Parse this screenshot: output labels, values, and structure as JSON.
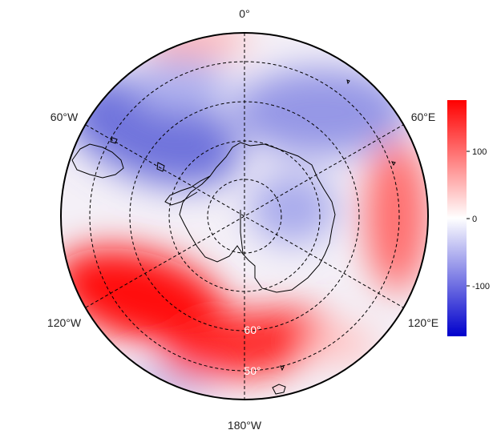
{
  "map": {
    "projection": "south polar stereographic",
    "longitude_labels": {
      "top": "0°",
      "upper_left": "60°W",
      "upper_right": "60°E",
      "lower_left": "120°W",
      "lower_right": "120°E",
      "bottom": "180°W"
    },
    "latitude_labels": [
      "60°",
      "50°"
    ],
    "graticule": {
      "style": "dashed",
      "color": "#000000"
    }
  },
  "colorbar": {
    "ticks": [
      "100",
      "0",
      "-100"
    ],
    "colors": {
      "high": "#ff0000",
      "mid": "#ffffff",
      "low": "#0000cc"
    }
  },
  "field_anomalies": {
    "positive": [
      "Pacific sector 120°W–180°",
      "Indian Ocean 60°E–120°E",
      "Atlantic near 0°"
    ],
    "negative": [
      "South Atlantic 30°W–60°W",
      "East Antarctic interior",
      "Pacific sector near 60°W"
    ]
  }
}
